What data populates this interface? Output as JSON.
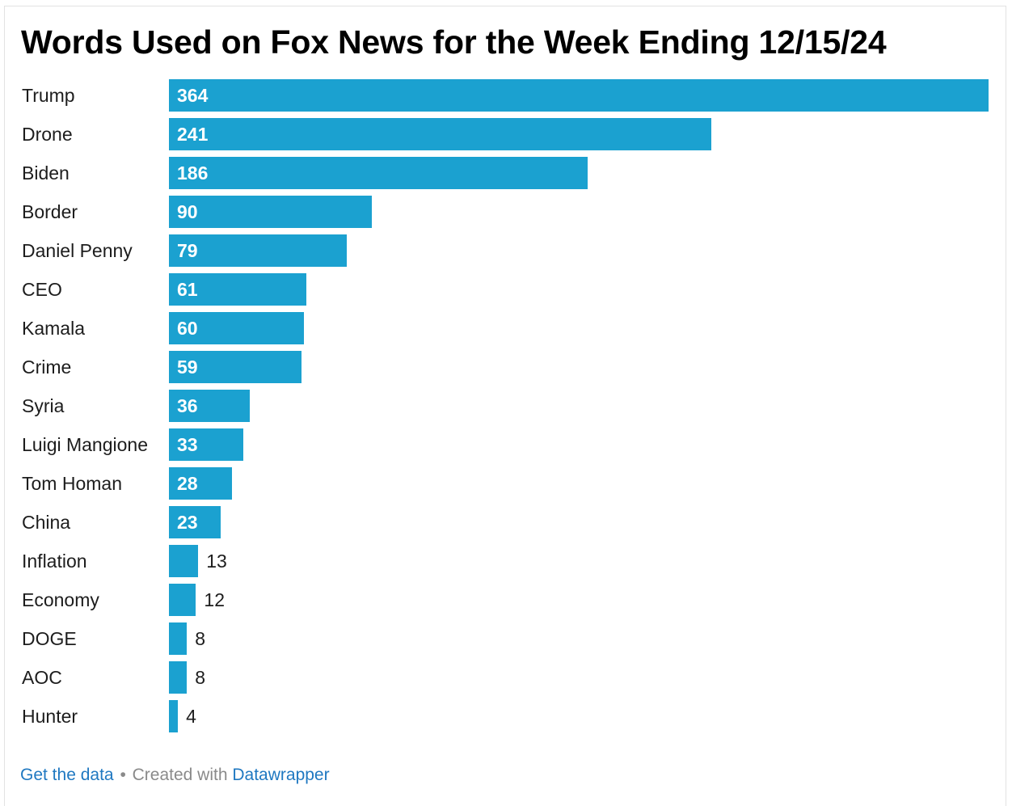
{
  "chart_data": {
    "type": "bar",
    "orientation": "horizontal",
    "title": "Words Used on Fox News for the Week Ending 12/15/24",
    "categories": [
      "Trump",
      "Drone",
      "Biden",
      "Border",
      "Daniel Penny",
      "CEO",
      "Kamala",
      "Crime",
      "Syria",
      "Luigi Mangione",
      "Tom Homan",
      "China",
      "Inflation",
      "Economy",
      "DOGE",
      "AOC",
      "Hunter"
    ],
    "values": [
      364,
      241,
      186,
      90,
      79,
      61,
      60,
      59,
      36,
      33,
      28,
      23,
      13,
      12,
      8,
      8,
      4
    ],
    "xlim": [
      0,
      364
    ],
    "grid": false,
    "data_labels": true,
    "bar_color": "#1ba1d0"
  },
  "footer": {
    "get_data": "Get the data",
    "separator": "•",
    "created_with": "Created with",
    "tool": "Datawrapper"
  }
}
